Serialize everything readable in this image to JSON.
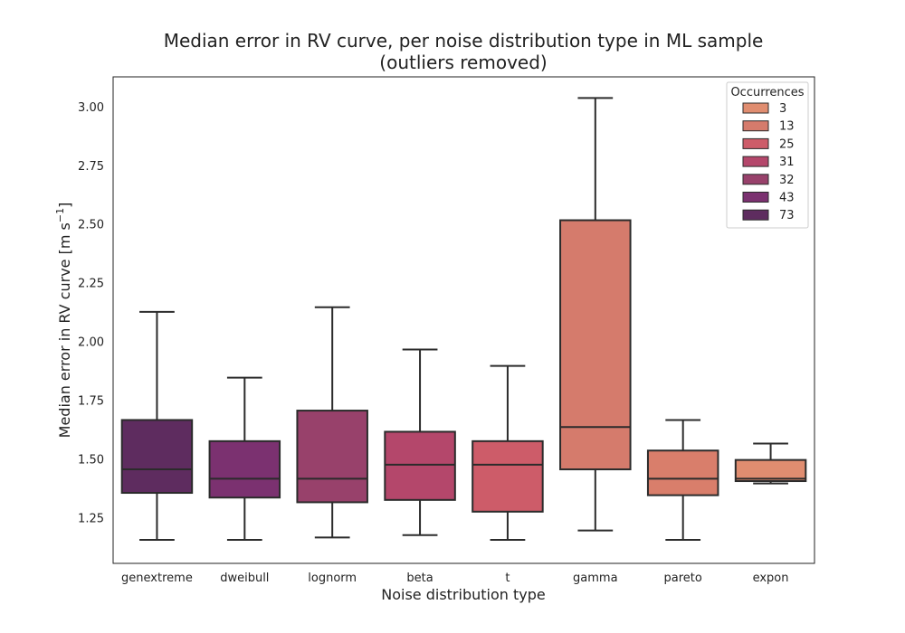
{
  "chart_data": {
    "type": "boxplot",
    "title_line1": "Median error in RV curve, per noise distribution type in ML sample",
    "title_line2": "(outliers removed)",
    "xlabel": "Noise distribution type",
    "ylabel": "Median error in RV curve [m s",
    "ylabel_sup": "−1",
    "ylabel_end": "]",
    "ylim": [
      1.06,
      3.13
    ],
    "yticks": [
      1.25,
      1.5,
      1.75,
      2.0,
      2.25,
      2.5,
      2.75,
      3.0
    ],
    "ytick_labels": [
      "1.25",
      "1.50",
      "1.75",
      "2.00",
      "2.25",
      "2.50",
      "2.75",
      "3.00"
    ],
    "grid": false,
    "categories": [
      "genextreme",
      "dweibull",
      "lognorm",
      "beta",
      "t",
      "gamma",
      "pareto",
      "expon"
    ],
    "boxes": [
      {
        "category": "genextreme",
        "whisker_low": 1.16,
        "q1": 1.36,
        "median": 1.46,
        "q3": 1.67,
        "whisker_high": 2.13,
        "color": "#5e2c5f"
      },
      {
        "category": "dweibull",
        "whisker_low": 1.16,
        "q1": 1.34,
        "median": 1.42,
        "q3": 1.58,
        "whisker_high": 1.85,
        "color": "#7b3170"
      },
      {
        "category": "lognorm",
        "whisker_low": 1.17,
        "q1": 1.32,
        "median": 1.42,
        "q3": 1.71,
        "whisker_high": 2.15,
        "color": "#98416b"
      },
      {
        "category": "beta",
        "whisker_low": 1.18,
        "q1": 1.33,
        "median": 1.48,
        "q3": 1.62,
        "whisker_high": 1.97,
        "color": "#b4476b"
      },
      {
        "category": "t",
        "whisker_low": 1.16,
        "q1": 1.28,
        "median": 1.48,
        "q3": 1.58,
        "whisker_high": 1.9,
        "color": "#cd5c69"
      },
      {
        "category": "gamma",
        "whisker_low": 1.2,
        "q1": 1.46,
        "median": 1.64,
        "q3": 2.52,
        "whisker_high": 3.04,
        "color": "#d57b6c"
      },
      {
        "category": "pareto",
        "whisker_low": 1.16,
        "q1": 1.35,
        "median": 1.42,
        "q3": 1.54,
        "whisker_high": 1.67,
        "color": "#d97e6b"
      },
      {
        "category": "expon",
        "whisker_low": 1.4,
        "q1": 1.41,
        "median": 1.42,
        "q3": 1.5,
        "whisker_high": 1.57,
        "color": "#e08d70"
      }
    ],
    "legend": {
      "title": "Occurrences",
      "placement": "top-right",
      "entries": [
        {
          "label": "3",
          "color": "#e08d70"
        },
        {
          "label": "13",
          "color": "#d57b6c"
        },
        {
          "label": "25",
          "color": "#cd5c69"
        },
        {
          "label": "31",
          "color": "#b4476b"
        },
        {
          "label": "32",
          "color": "#98416b"
        },
        {
          "label": "43",
          "color": "#7b3170"
        },
        {
          "label": "73",
          "color": "#5e2c5f"
        }
      ]
    }
  }
}
